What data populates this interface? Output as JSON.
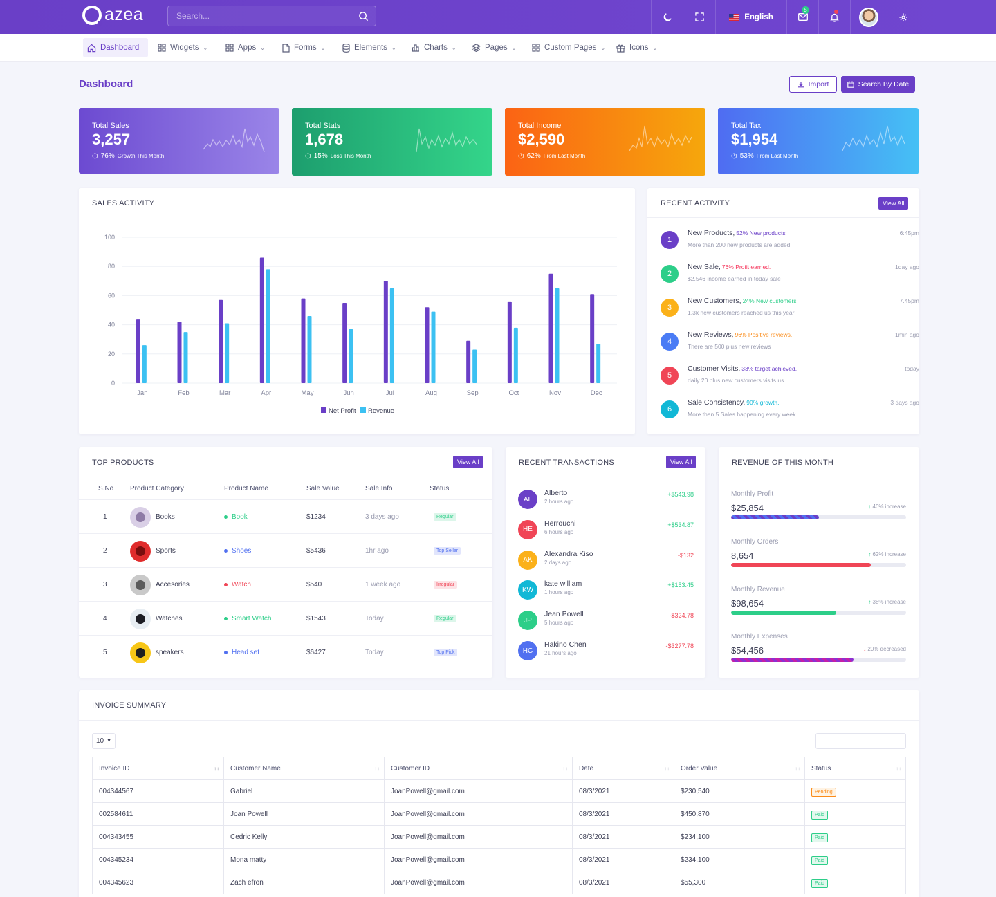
{
  "app": {
    "logo": "azea"
  },
  "search": {
    "placeholder": "Search..."
  },
  "topbar": {
    "language": "English",
    "mail_badge": "5"
  },
  "nav": [
    {
      "label": "Dashboard",
      "icon": "home-icon"
    },
    {
      "label": "Widgets",
      "icon": "grid-icon"
    },
    {
      "label": "Apps",
      "icon": "apps-icon"
    },
    {
      "label": "Forms",
      "icon": "file-icon"
    },
    {
      "label": "Elements",
      "icon": "database-icon"
    },
    {
      "label": "Charts",
      "icon": "bar-chart-icon"
    },
    {
      "label": "Pages",
      "icon": "layers-icon"
    },
    {
      "label": "Custom Pages",
      "icon": "grid-icon"
    },
    {
      "label": "Icons",
      "icon": "gift-icon"
    }
  ],
  "page": {
    "title": "Dashboard",
    "import_label": "Import",
    "search_date_label": "Search By Date"
  },
  "stats": [
    {
      "title": "Total Sales",
      "value": "3,257",
      "percent": "76%",
      "note": "Growth This Month",
      "colors": [
        "#6c4ad1",
        "#9a85e8"
      ]
    },
    {
      "title": "Total Stats",
      "value": "1,678",
      "percent": "15%",
      "note": "Loss This Month",
      "colors": [
        "#1d9e6e",
        "#34d58a"
      ]
    },
    {
      "title": "Total Income",
      "value": "$2,590",
      "percent": "62%",
      "note": "From Last Month",
      "colors": [
        "#fb6314",
        "#f6a70c"
      ]
    },
    {
      "title": "Total Tax",
      "value": "$1,954",
      "percent": "53%",
      "note": "From Last Month",
      "colors": [
        "#4f6cf2",
        "#45c0f5"
      ]
    }
  ],
  "sales_activity": {
    "title": "SALES ACTIVITY"
  },
  "chart_data": {
    "type": "bar",
    "categories": [
      "Jan",
      "Feb",
      "Mar",
      "Apr",
      "May",
      "Jun",
      "Jul",
      "Aug",
      "Sep",
      "Oct",
      "Nov",
      "Dec"
    ],
    "series": [
      {
        "name": "Net Profit",
        "color": "#6a3fc7",
        "values": [
          44,
          42,
          57,
          86,
          58,
          55,
          70,
          52,
          29,
          56,
          75,
          61
        ]
      },
      {
        "name": "Revenue",
        "color": "#3cc1f2",
        "values": [
          26,
          35,
          41,
          78,
          46,
          37,
          65,
          49,
          23,
          38,
          65,
          27
        ]
      }
    ],
    "yticks": [
      0,
      20,
      40,
      60,
      80,
      100
    ],
    "ylim": [
      0,
      100
    ],
    "grid": true,
    "legend": "bottom"
  },
  "recent_activity": {
    "title": "RECENT ACTIVITY",
    "view_all": "View All",
    "items": [
      {
        "num": "1",
        "title": "New Products,",
        "highlight": "52% New products",
        "desc": "More than 200 new products are added",
        "time": "6:45pm",
        "color": "#6a3fc7"
      },
      {
        "num": "2",
        "title": "New Sale,",
        "highlight": "76% Profit earned.",
        "desc": "$2,546 income earned in today sale",
        "time": "1day ago",
        "color": "#2dce89",
        "hl_color": "#f5365c"
      },
      {
        "num": "3",
        "title": "New Customers,",
        "highlight": "24% New customers",
        "desc": "1.3k new customers reached us this year",
        "time": "7.45pm",
        "color": "#fbb11a",
        "hl_color": "#2dce89"
      },
      {
        "num": "4",
        "title": "New Reviews,",
        "highlight": "96% Positive reviews.",
        "desc": "There are 500 plus new reviews",
        "time": "1min ago",
        "color": "#4a7cf5",
        "hl_color": "#fb8c1a"
      },
      {
        "num": "5",
        "title": "Customer Visits,",
        "highlight": "33% target achieved.",
        "desc": "daily 20 plus new customers visits us",
        "time": "today",
        "color": "#f04556",
        "hl_color": "#6a3fc7"
      },
      {
        "num": "6",
        "title": "Sale Consistency,",
        "highlight": "90% growth.",
        "desc": "More than 5 Sales happening every week",
        "time": "3 days ago",
        "color": "#11b8d6",
        "hl_color": "#11b8d6"
      }
    ]
  },
  "top_products": {
    "title": "TOP PRODUCTS",
    "view_all": "View All",
    "headers": [
      "S.No",
      "Product Category",
      "Product Name",
      "Sale Value",
      "Sale Info",
      "Status"
    ],
    "rows": [
      {
        "sno": "1",
        "category": "Books",
        "name": "Book",
        "value": "$1234",
        "info": "3 days ago",
        "status": "Regular",
        "dot": "#2dce89",
        "name_color": "#2dce89",
        "status_bg": "#dcf6ea",
        "status_color": "#2dce89",
        "img": [
          "#d9cfe6",
          "#8e7ba6"
        ]
      },
      {
        "sno": "2",
        "category": "Sports",
        "name": "Shoes",
        "value": "$5436",
        "info": "1hr ago",
        "status": "Top Seller",
        "dot": "#5170f0",
        "name_color": "#5170f0",
        "status_bg": "#e1e5fc",
        "status_color": "#5170f0",
        "img": [
          "#e02c2c",
          "#7a0e0e"
        ]
      },
      {
        "sno": "3",
        "category": "Accesories",
        "name": "Watch",
        "value": "$540",
        "info": "1 week ago",
        "status": "Irregular",
        "dot": "#f04556",
        "name_color": "#f04556",
        "status_bg": "#fde3e6",
        "status_color": "#f04556",
        "img": [
          "#c9c9c9",
          "#5c5c5c"
        ]
      },
      {
        "sno": "4",
        "category": "Watches",
        "name": "Smart Watch",
        "value": "$1543",
        "info": "Today",
        "status": "Regular",
        "dot": "#2dce89",
        "name_color": "#2dce89",
        "status_bg": "#dcf6ea",
        "status_color": "#2dce89",
        "img": [
          "#e8eef3",
          "#1d1d24"
        ]
      },
      {
        "sno": "5",
        "category": "speakers",
        "name": "Head set",
        "value": "$6427",
        "info": "Today",
        "status": "Top Pick",
        "dot": "#5170f0",
        "name_color": "#5170f0",
        "status_bg": "#e1e5fc",
        "status_color": "#5170f0",
        "img": [
          "#f7c617",
          "#1f1f1f"
        ]
      }
    ]
  },
  "transactions": {
    "title": "RECENT TRANSACTIONS",
    "view_all": "View All",
    "rows": [
      {
        "initials": "AL",
        "name": "Alberto",
        "time": "2 hours ago",
        "amount": "+$543.98",
        "color": "#6a3fc7",
        "amt_color": "#2dce89"
      },
      {
        "initials": "HE",
        "name": "Herrouchi",
        "time": "6 hours ago",
        "amount": "+$534.87",
        "color": "#f04556",
        "amt_color": "#2dce89"
      },
      {
        "initials": "AK",
        "name": "Alexandra Kiso",
        "time": "2 days ago",
        "amount": "-$132",
        "color": "#fbb11a",
        "amt_color": "#f04556"
      },
      {
        "initials": "KW",
        "name": "kate william",
        "time": "1 hours ago",
        "amount": "+$153.45",
        "color": "#11b8d6",
        "amt_color": "#2dce89"
      },
      {
        "initials": "JP",
        "name": "Jean Powell",
        "time": "5 hours ago",
        "amount": "-$324.78",
        "color": "#2dce89",
        "amt_color": "#f04556"
      },
      {
        "initials": "HC",
        "name": "Hakino Chen",
        "time": "21 hours ago",
        "amount": "-$3277.78",
        "color": "#5170f0",
        "amt_color": "#f04556"
      }
    ]
  },
  "revenue": {
    "title": "REVENUE OF THIS MONTH",
    "items": [
      {
        "label": "Monthly Profit",
        "value": "$25,854",
        "change": "40% increase",
        "direction": "up",
        "fill": 0.5,
        "color": "#6a3fc7",
        "color2": "#5170f0"
      },
      {
        "label": "Monthly Orders",
        "value": "8,654",
        "change": "62% increase",
        "direction": "up",
        "fill": 0.8,
        "color": "#f04556",
        "color2": "#f04556"
      },
      {
        "label": "Monthly Revenue",
        "value": "$98,654",
        "change": "38% increase",
        "direction": "up",
        "fill": 0.6,
        "color": "#2dce89",
        "color2": "#2dce89"
      },
      {
        "label": "Monthly Expenses",
        "value": "$54,456",
        "change": "20% decreased",
        "direction": "down",
        "fill": 0.7,
        "color": "#c41fa8",
        "color2": "#8d2fd1"
      }
    ]
  },
  "invoice": {
    "title": "INVOICE SUMMARY",
    "page_size": "10",
    "headers": [
      "Invoice ID",
      "Customer Name",
      "Customer ID",
      "Date",
      "Order Value",
      "Status"
    ],
    "rows": [
      {
        "id": "004344567",
        "name": "Gabriel",
        "cid": "JoanPowell@gmail.com",
        "date": "08/3/2021",
        "value": "$230,540",
        "status": "Pending",
        "status_color": "#fb8c1a",
        "status_bg": "#fff3e3"
      },
      {
        "id": "002584611",
        "name": "Joan Powell",
        "cid": "JoanPowell@gmail.com",
        "date": "08/3/2021",
        "value": "$450,870",
        "status": "Paid",
        "status_color": "#2dce89",
        "status_bg": "#e3f8ee"
      },
      {
        "id": "004343455",
        "name": "Cedric Kelly",
        "cid": "JoanPowell@gmail.com",
        "date": "08/3/2021",
        "value": "$234,100",
        "status": "Paid",
        "status_color": "#2dce89",
        "status_bg": "#e3f8ee"
      },
      {
        "id": "004345234",
        "name": "Mona matty",
        "cid": "JoanPowell@gmail.com",
        "date": "08/3/2021",
        "value": "$234,100",
        "status": "Paid",
        "status_color": "#2dce89",
        "status_bg": "#e3f8ee"
      },
      {
        "id": "004345623",
        "name": "Zach efron",
        "cid": "JoanPowell@gmail.com",
        "date": "08/3/2021",
        "value": "$55,300",
        "status": "Paid",
        "status_color": "#2dce89",
        "status_bg": "#e3f8ee"
      }
    ]
  }
}
